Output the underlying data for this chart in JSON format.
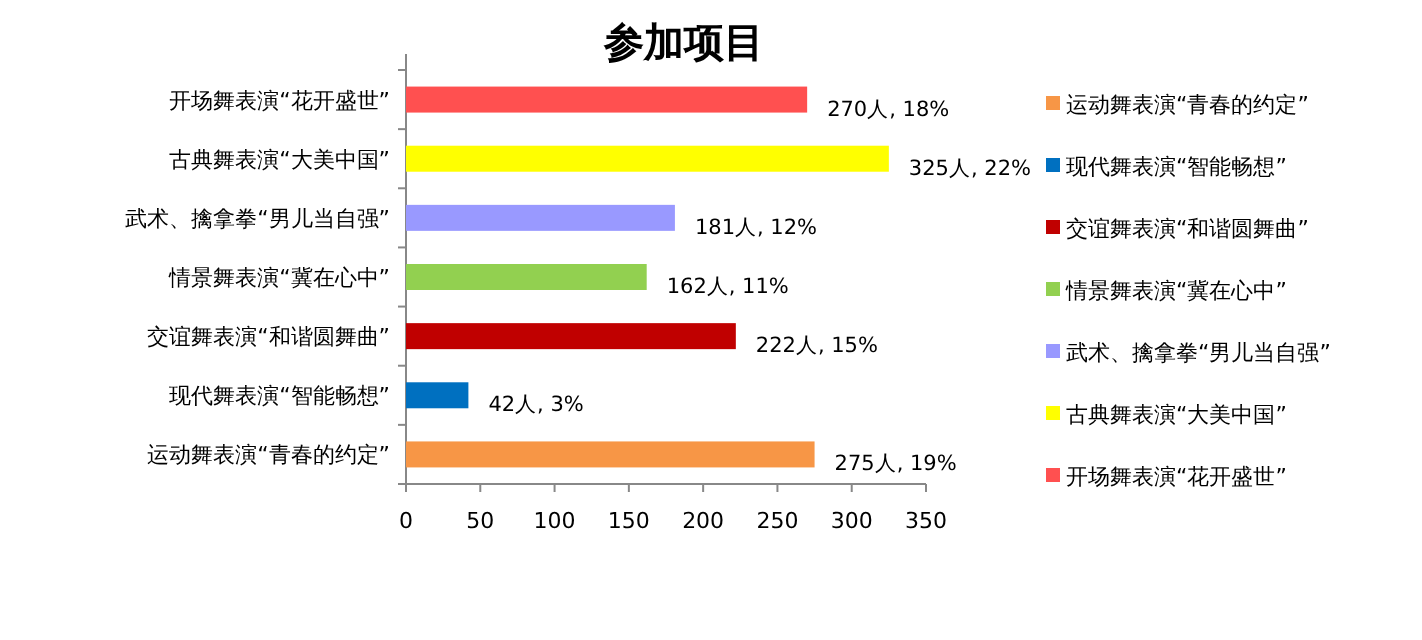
{
  "chart_data": {
    "type": "bar",
    "orientation": "horizontal",
    "title": "参加项目",
    "categories": [
      "开场舞表演“花开盛世”",
      "古典舞表演“大美中国”",
      "武术、擒拿拳“男儿当自强”",
      "情景舞表演“冀在心中”",
      "交谊舞表演“和谐圆舞曲”",
      "现代舞表演“智能畅想”",
      "运动舞表演“青春的约定”"
    ],
    "series": [
      {
        "name": "运动舞表演“青春的约定”",
        "color": "#f79646",
        "values": [
          null,
          null,
          null,
          null,
          null,
          null,
          275
        ],
        "value_labels": [
          null,
          null,
          null,
          null,
          null,
          null,
          "275人, 19%"
        ]
      },
      {
        "name": "现代舞表演“智能畅想”",
        "color": "#0070c0",
        "values": [
          null,
          null,
          null,
          null,
          null,
          42,
          null
        ],
        "value_labels": [
          null,
          null,
          null,
          null,
          null,
          "42人, 3%",
          null
        ]
      },
      {
        "name": "交谊舞表演“和谐圆舞曲”",
        "color": "#c00000",
        "values": [
          null,
          null,
          null,
          null,
          222,
          null,
          null
        ],
        "value_labels": [
          null,
          null,
          null,
          null,
          "222人, 15%",
          null,
          null
        ]
      },
      {
        "name": "情景舞表演“冀在心中”",
        "color": "#92d050",
        "values": [
          null,
          null,
          null,
          162,
          null,
          null,
          null
        ],
        "value_labels": [
          null,
          null,
          null,
          "162人, 11%",
          null,
          null,
          null
        ]
      },
      {
        "name": "武术、擒拿拳“男儿当自强”",
        "color": "#9999ff",
        "values": [
          null,
          null,
          181,
          null,
          null,
          null,
          null
        ],
        "value_labels": [
          null,
          null,
          "181人, 12%",
          null,
          null,
          null,
          null
        ]
      },
      {
        "name": "古典舞表演“大美中国”",
        "color": "#ffff00",
        "values": [
          null,
          325,
          null,
          null,
          null,
          null,
          null
        ],
        "value_labels": [
          null,
          "325人, 22%",
          null,
          null,
          null,
          null,
          null
        ]
      },
      {
        "name": "开场舞表演“花开盛世”",
        "color": "#ff5050",
        "values": [
          270,
          null,
          null,
          null,
          null,
          null,
          null
        ],
        "value_labels": [
          "270人, 18%",
          null,
          null,
          null,
          null,
          null,
          null
        ]
      }
    ],
    "xlim": [
      0,
      350
    ],
    "xticks": [
      0,
      50,
      100,
      150,
      200,
      250,
      300,
      350
    ],
    "legend": "right"
  }
}
